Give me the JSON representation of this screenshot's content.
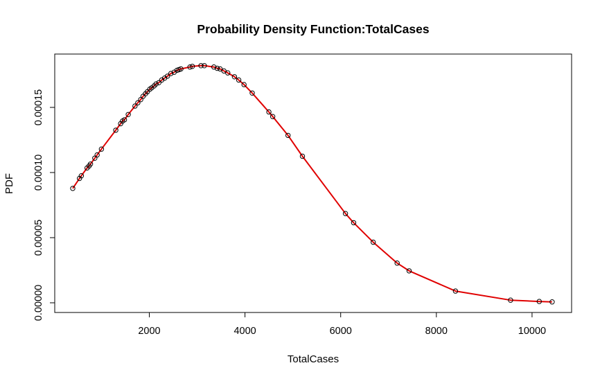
{
  "chart_data": {
    "type": "line",
    "title": "Probability Density Function:TotalCases",
    "xlabel": "TotalCases",
    "ylabel": "PDF",
    "xlim": [
      400,
      10450
    ],
    "ylim": [
      0,
      0.00018
    ],
    "x_ticks": [
      2000,
      4000,
      6000,
      8000,
      10000
    ],
    "x_tick_labels": [
      "2000",
      "4000",
      "6000",
      "8000",
      "10000"
    ],
    "y_ticks": [
      0,
      5e-05,
      0.0001,
      0.00015
    ],
    "y_tick_labels": [
      "0.00000",
      "0.00005",
      "0.00010",
      "0.00015"
    ],
    "grid": false,
    "legend": "none",
    "line_color": "#e00000",
    "marker": "open-circle",
    "x": [
      400,
      540,
      580,
      700,
      740,
      770,
      860,
      910,
      1000,
      1300,
      1400,
      1440,
      1480,
      1560,
      1700,
      1760,
      1820,
      1870,
      1920,
      1960,
      2010,
      2050,
      2100,
      2140,
      2200,
      2260,
      2320,
      2380,
      2450,
      2520,
      2580,
      2620,
      2660,
      2850,
      2900,
      3080,
      3150,
      3350,
      3420,
      3480,
      3560,
      3640,
      3780,
      3870,
      3980,
      4150,
      4500,
      4580,
      4900,
      5200,
      6100,
      6270,
      6680,
      7180,
      7430,
      8400,
      9550,
      10150,
      10420
    ],
    "y": [
      8.78e-05,
      9.55e-05,
      9.75e-05,
      0.0001035,
      0.000105,
      0.0001065,
      0.000111,
      0.0001135,
      0.000118,
      0.0001325,
      0.0001375,
      0.0001395,
      0.0001405,
      0.0001445,
      0.000151,
      0.0001535,
      0.000156,
      0.0001585,
      0.0001605,
      0.000162,
      0.000164,
      0.000165,
      0.0001665,
      0.000168,
      0.000169,
      0.000171,
      0.0001725,
      0.000174,
      0.000176,
      0.000177,
      0.0001785,
      0.000179,
      0.0001795,
      0.000181,
      0.0001815,
      0.000182,
      0.000182,
      0.000181,
      0.00018,
      0.0001795,
      0.000178,
      0.0001765,
      0.0001735,
      0.000171,
      0.0001675,
      0.000161,
      0.0001465,
      0.000143,
      0.0001285,
      0.0001125,
      6.85e-05,
      6.15e-05,
      4.65e-05,
      3.05e-05,
      2.45e-05,
      9e-06,
      2e-06,
      1e-06,
      7e-07
    ]
  }
}
